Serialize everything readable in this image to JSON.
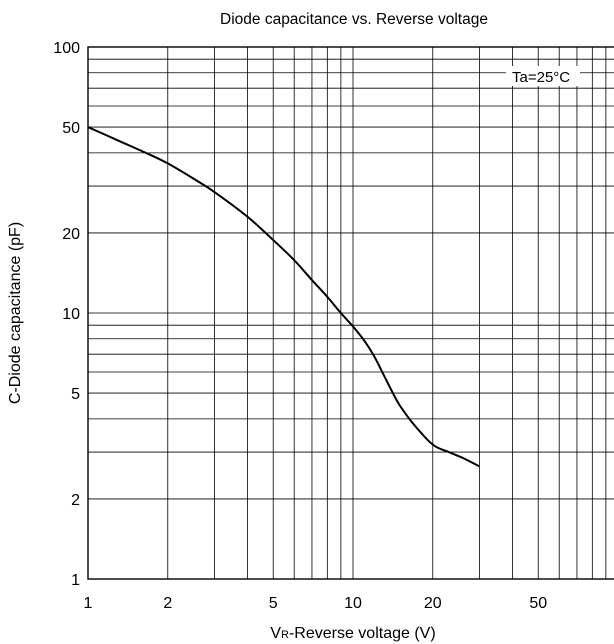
{
  "chart_data": {
    "type": "line",
    "title": "Diode capacitance vs. Reverse voltage",
    "xlabel": {
      "prefix": "V",
      "subscript": "R",
      "rest": "-Reverse voltage (V)"
    },
    "ylabel": "C-Diode capacitance (pF)",
    "xscale": "log",
    "yscale": "log",
    "xlim": [
      1,
      100
    ],
    "ylim": [
      1,
      100
    ],
    "grid": true,
    "x_ticks": [
      {
        "value": 1,
        "label": "1"
      },
      {
        "value": 2,
        "label": "2"
      },
      {
        "value": 5,
        "label": "5"
      },
      {
        "value": 10,
        "label": "10"
      },
      {
        "value": 20,
        "label": "20"
      },
      {
        "value": 50,
        "label": "50"
      }
    ],
    "y_ticks": [
      {
        "value": 1,
        "label": "1"
      },
      {
        "value": 2,
        "label": "2"
      },
      {
        "value": 5,
        "label": "5"
      },
      {
        "value": 10,
        "label": "10"
      },
      {
        "value": 20,
        "label": "20"
      },
      {
        "value": 50,
        "label": "50"
      },
      {
        "value": 100,
        "label": "100"
      }
    ],
    "annotation": "Ta=25°C",
    "line_color": "#000000",
    "series": [
      {
        "x": [
          1,
          1.3,
          1.7,
          2,
          2.5,
          3,
          4,
          5,
          6,
          7,
          8,
          9,
          10,
          11,
          12,
          13,
          14,
          15,
          17,
          20,
          23,
          26,
          30
        ],
        "y": [
          50,
          44.5,
          39.5,
          36.5,
          32,
          28.5,
          23,
          18.8,
          15.8,
          13.3,
          11.5,
          10,
          8.9,
          7.9,
          6.9,
          5.9,
          5.1,
          4.5,
          3.8,
          3.2,
          3.0,
          2.85,
          2.65
        ]
      }
    ]
  }
}
